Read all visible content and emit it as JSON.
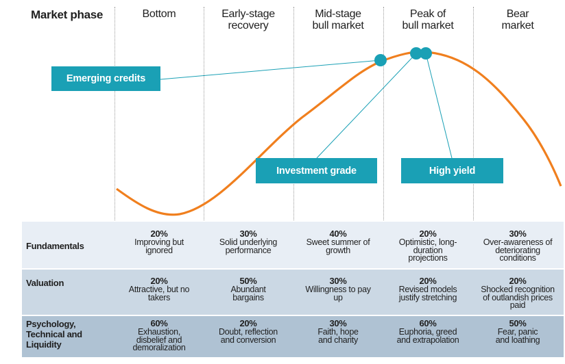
{
  "header": {
    "title": "Market phase",
    "phases": [
      "Bottom",
      "Early-stage\nrecovery",
      "Mid-stage\nbull market",
      "Peak of\nbull market",
      "Bear\nmarket"
    ]
  },
  "labels": {
    "emerging": "Emerging credits",
    "investment": "Investment grade",
    "high_yield": "High yield"
  },
  "rows": [
    {
      "label": "Fundamentals",
      "cells": [
        {
          "pct": "20%",
          "desc": "Improving but\nignored"
        },
        {
          "pct": "30%",
          "desc": "Solid underlying\nperformance"
        },
        {
          "pct": "40%",
          "desc": "Sweet summer of\ngrowth"
        },
        {
          "pct": "20%",
          "desc": "Optimistic, long-\nduration\nprojections"
        },
        {
          "pct": "30%",
          "desc": "Over-awareness of\ndeteriorating\nconditions"
        }
      ]
    },
    {
      "label": "Valuation",
      "cells": [
        {
          "pct": "20%",
          "desc": "Attractive, but no\ntakers"
        },
        {
          "pct": "50%",
          "desc": "Abundant\nbargains"
        },
        {
          "pct": "30%",
          "desc": "Willingness to pay\nup"
        },
        {
          "pct": "20%",
          "desc": "Revised models\njustify stretching"
        },
        {
          "pct": "20%",
          "desc": "Shocked recognition\nof outlandish prices\npaid"
        }
      ]
    },
    {
      "label": "Psychology,\nTechnical and\nLiquidity",
      "cells": [
        {
          "pct": "60%",
          "desc": "Exhaustion,\ndisbelief and\ndemoralization"
        },
        {
          "pct": "20%",
          "desc": "Doubt, reflection\nand conversion"
        },
        {
          "pct": "30%",
          "desc": "Faith, hope\nand charity"
        },
        {
          "pct": "60%",
          "desc": "Euphoria, greed\nand extrapolation"
        },
        {
          "pct": "50%",
          "desc": "Fear, panic\nand loathing"
        }
      ]
    }
  ],
  "colors": {
    "curve": "#f07f1e",
    "accent": "#1aa0b5"
  }
}
